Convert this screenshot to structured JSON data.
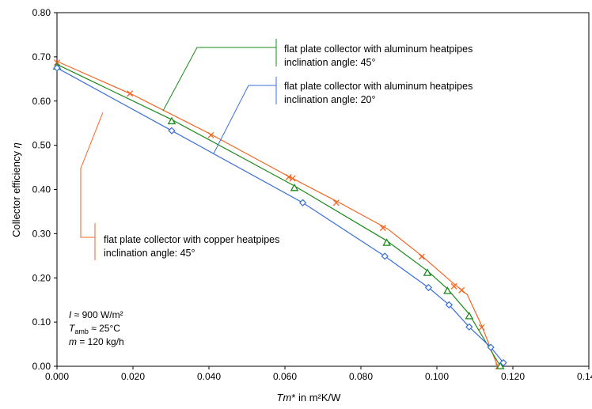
{
  "chart_data": {
    "type": "line",
    "xlabel_italic": "Tm",
    "xlabel_rest": "* in m²K/W",
    "ylabel_prefix": "Collector efficiency ",
    "ylabel_symbol": "η",
    "xlim": [
      0,
      0.14
    ],
    "ylim": [
      0,
      0.8
    ],
    "x_ticks": [
      0,
      0.02,
      0.04,
      0.06,
      0.08,
      0.1,
      0.12,
      0.14
    ],
    "x_tick_labels": [
      "0.000",
      "0.020",
      "0.040",
      "0.060",
      "0.080",
      "0.100",
      "0.120",
      "0.140"
    ],
    "y_ticks": [
      0,
      0.1,
      0.2,
      0.3,
      0.4,
      0.5,
      0.6,
      0.7,
      0.8
    ],
    "y_tick_labels": [
      "0.00",
      "0.10",
      "0.20",
      "0.30",
      "0.40",
      "0.50",
      "0.60",
      "0.70",
      "0.80"
    ],
    "grid": false,
    "series": [
      {
        "key": "copper45",
        "color": "#f26522",
        "marker": "x",
        "points": [
          [
            0.0,
            0.687
          ],
          [
            0.0192,
            0.617
          ],
          [
            0.0405,
            0.523
          ],
          [
            0.061,
            0.428
          ],
          [
            0.062,
            0.425
          ],
          [
            0.0735,
            0.37
          ],
          [
            0.0858,
            0.313
          ],
          [
            0.096,
            0.248
          ],
          [
            0.1045,
            0.181
          ],
          [
            0.1065,
            0.172
          ],
          [
            0.1118,
            0.088
          ],
          [
            0.1162,
            0.0
          ]
        ],
        "line": [
          [
            0.0,
            0.69
          ],
          [
            0.02,
            0.614
          ],
          [
            0.04,
            0.527
          ],
          [
            0.06,
            0.434
          ],
          [
            0.075,
            0.367
          ],
          [
            0.087,
            0.311
          ],
          [
            0.096,
            0.25
          ],
          [
            0.104,
            0.19
          ],
          [
            0.108,
            0.162
          ],
          [
            0.1118,
            0.092
          ],
          [
            0.116,
            0.0
          ]
        ]
      },
      {
        "key": "aluminum45",
        "color": "#1a8a1a",
        "marker": "triangle",
        "points": [
          [
            0.0,
            0.678
          ],
          [
            0.0302,
            0.554
          ],
          [
            0.0625,
            0.403
          ],
          [
            0.0868,
            0.279
          ],
          [
            0.0975,
            0.211
          ],
          [
            0.1028,
            0.17
          ],
          [
            0.1085,
            0.113
          ],
          [
            0.1167,
            0.0
          ]
        ],
        "line": [
          [
            0.0,
            0.683
          ],
          [
            0.03,
            0.559
          ],
          [
            0.0625,
            0.408
          ],
          [
            0.0868,
            0.284
          ],
          [
            0.0975,
            0.216
          ],
          [
            0.1028,
            0.175
          ],
          [
            0.1085,
            0.118
          ],
          [
            0.1167,
            0.0
          ]
        ]
      },
      {
        "key": "aluminum20",
        "color": "#3a6fd8",
        "marker": "diamond",
        "points": [
          [
            0.0,
            0.675
          ],
          [
            0.0302,
            0.533
          ],
          [
            0.0647,
            0.37
          ],
          [
            0.0863,
            0.249
          ],
          [
            0.0978,
            0.178
          ],
          [
            0.1032,
            0.139
          ],
          [
            0.1085,
            0.089
          ],
          [
            0.1142,
            0.043
          ],
          [
            0.1175,
            0.008
          ]
        ],
        "line": [
          [
            0.0,
            0.675
          ],
          [
            0.0302,
            0.533
          ],
          [
            0.0647,
            0.37
          ],
          [
            0.0863,
            0.249
          ],
          [
            0.0978,
            0.178
          ],
          [
            0.1032,
            0.139
          ],
          [
            0.1085,
            0.089
          ],
          [
            0.1142,
            0.043
          ],
          [
            0.1175,
            0.008
          ]
        ]
      }
    ],
    "annotations": [
      {
        "key": "alu45",
        "series": "aluminum45",
        "lines": [
          "flat plate collector with aluminum heatpipes",
          "inclination angle: 45°"
        ]
      },
      {
        "key": "alu20",
        "series": "aluminum20",
        "lines": [
          "flat plate collector with aluminum heatpipes",
          "inclination angle: 20°"
        ]
      },
      {
        "key": "cu45",
        "series": "copper45",
        "lines": [
          "flat plate collector with copper heatpipes",
          "inclination angle: 45°"
        ]
      }
    ],
    "conditions": [
      {
        "italic": "I",
        "sub": "",
        "rest": " ≈ 900 W/m²"
      },
      {
        "italic": "T",
        "sub": "amb",
        "rest": " ≈ 25°C"
      },
      {
        "italic": "m",
        "sub": "",
        "rest": " = 120 kg/h"
      }
    ]
  }
}
